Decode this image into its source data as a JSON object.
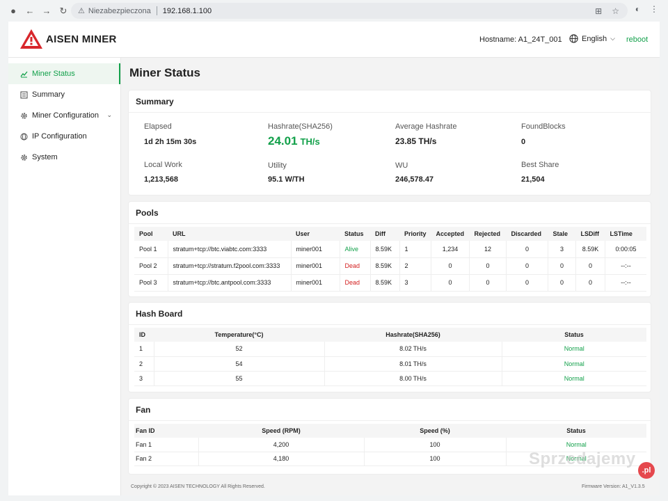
{
  "browser": {
    "insecure_label": "Niezabezpieczona",
    "url": "192.168.1.100"
  },
  "header": {
    "brand": "AISEN MINER",
    "hostname_label": "Hostname:",
    "hostname_value": "A1_24T_001",
    "language": "English",
    "reboot": "reboot"
  },
  "sidebar": {
    "items": [
      {
        "label": "Miner Status",
        "icon": "chart-line-icon",
        "active": true
      },
      {
        "label": "Summary",
        "icon": "summary-icon"
      },
      {
        "label": "Miner Configuration",
        "icon": "gear-icon",
        "expandable": true
      },
      {
        "label": "IP Configuration",
        "icon": "network-icon"
      },
      {
        "label": "System",
        "icon": "gear-icon"
      }
    ]
  },
  "main": {
    "title": "Miner Status",
    "summary": {
      "title": "Summary",
      "elapsed_label": "Elapsed",
      "elapsed_value": "1d 2h 15m 30s",
      "hashrate_label": "Hashrate(SHA256)",
      "hashrate_value": "24.01",
      "hashrate_unit": "TH/s",
      "avg_label": "Average Hashrate",
      "avg_value": "23.85 TH/s",
      "found_label": "FoundBlocks",
      "found_value": "0",
      "localwork_label": "Local Work",
      "localwork_value": "1,213,568",
      "utility_label": "Utility",
      "utility_value": "95.1 W/TH",
      "wu_label": "WU",
      "wu_value": "246,578.47",
      "bestshare_label": "Best Share",
      "bestshare_value": "21,504"
    },
    "pools": {
      "title": "Pools",
      "headers": [
        "Pool",
        "URL",
        "User",
        "Status",
        "Diff",
        "Priority",
        "Accepted",
        "Rejected",
        "Discarded",
        "Stale",
        "LSDiff",
        "LSTime"
      ],
      "rows": [
        [
          "Pool 1",
          "stratum+tcp://btc.viabtc.com:3333",
          "miner001",
          "Alive",
          "8.59K",
          "1",
          "1,234",
          "12",
          "0",
          "3",
          "8.59K",
          "0:00:05"
        ],
        [
          "Pool 2",
          "stratum+tcp://stratum.f2pool.com:3333",
          "miner001",
          "Dead",
          "8.59K",
          "2",
          "0",
          "0",
          "0",
          "0",
          "0",
          "--:--"
        ],
        [
          "Pool 3",
          "stratum+tcp://btc.antpool.com:3333",
          "miner001",
          "Dead",
          "8.59K",
          "3",
          "0",
          "0",
          "0",
          "0",
          "0",
          "--:--"
        ]
      ]
    },
    "hashboard": {
      "title": "Hash Board",
      "headers": [
        "ID",
        "Temperature(°C)",
        "Hashrate(SHA256)",
        "Status"
      ],
      "rows": [
        [
          "1",
          "52",
          "8.02 TH/s",
          "Normal"
        ],
        [
          "2",
          "54",
          "8.01 TH/s",
          "Normal"
        ],
        [
          "3",
          "55",
          "8.00 TH/s",
          "Normal"
        ]
      ]
    },
    "fan": {
      "title": "Fan",
      "headers": [
        "Fan ID",
        "Speed (RPM)",
        "Speed (%)",
        "Status"
      ],
      "rows": [
        [
          "Fan 1",
          "4,200",
          "100",
          "Normal"
        ],
        [
          "Fan 2",
          "4,180",
          "100",
          "Normal"
        ]
      ]
    },
    "footer": {
      "copyright": "Copyright © 2023 AISEN TECHNOLOGY All Rights Reserved.",
      "firmware": "Firmware Version: A1_V1.3.5"
    }
  },
  "watermark": {
    "text": "Sprzedajemy",
    "badge": ".pl"
  },
  "colors": {
    "accent": "#12a04a",
    "dead": "#d32020",
    "logo_red": "#d8262b"
  }
}
